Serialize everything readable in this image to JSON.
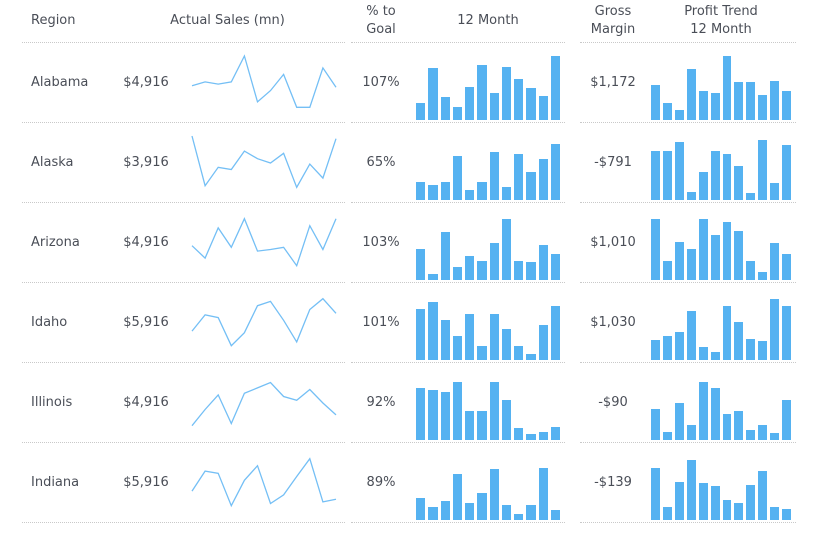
{
  "colors": {
    "bar": "#55b2f1",
    "line": "#74bff5",
    "text": "#4a4e57",
    "divider": "#c9c9c9",
    "background": "#ffffff"
  },
  "header": {
    "region": "Region",
    "actual_sales": "Actual Sales (mn)",
    "pct_to_goal": "% to Goal",
    "twelve_month": "12 Month",
    "gross_margin": "Gross Margin",
    "profit_trend": "Profit Trend 12 Month"
  },
  "chart_data": {
    "type": "table",
    "title": "Regional sales KPI table with sparklines and 12-month bar charts",
    "columns": [
      "Region",
      "Actual Sales (mn)",
      "Sales Trend sparkline (12 points)",
      "% to Goal",
      "12 Month bars",
      "Gross Margin",
      "Profit Trend 12 Month bars"
    ],
    "value_scale": "sparkline and bar values are relative heights 0-1 over 12 monthly periods",
    "legend": "none",
    "grid": "off",
    "rows": [
      {
        "region": "Alabama",
        "actual_sales": "$4,916",
        "sales_trend": [
          0.45,
          0.52,
          0.48,
          0.52,
          1.0,
          0.15,
          0.36,
          0.66,
          0.05,
          0.05,
          0.78,
          0.42
        ],
        "pct_to_goal": "107%",
        "twelve_month": [
          0.27,
          0.82,
          0.36,
          0.21,
          0.52,
          0.86,
          0.42,
          0.83,
          0.64,
          0.5,
          0.38,
          1.0
        ],
        "gross_margin": "$1,172",
        "profit_trend": [
          0.55,
          0.27,
          0.15,
          0.8,
          0.45,
          0.42,
          1.0,
          0.59,
          0.59,
          0.39,
          0.61,
          0.46
        ]
      },
      {
        "region": "Alaska",
        "actual_sales": "$3,916",
        "sales_trend": [
          1.0,
          0.08,
          0.42,
          0.38,
          0.72,
          0.58,
          0.5,
          0.68,
          0.05,
          0.48,
          0.22,
          0.95
        ],
        "pct_to_goal": "65%",
        "twelve_month": [
          0.28,
          0.24,
          0.28,
          0.68,
          0.16,
          0.28,
          0.75,
          0.2,
          0.72,
          0.44,
          0.64,
          0.88
        ],
        "gross_margin": "-$791",
        "profit_trend": [
          0.76,
          0.76,
          0.9,
          0.12,
          0.44,
          0.76,
          0.72,
          0.53,
          0.11,
          0.93,
          0.26,
          0.86
        ]
      },
      {
        "region": "Arizona",
        "actual_sales": "$4,916",
        "sales_trend": [
          0.45,
          0.22,
          0.78,
          0.42,
          0.95,
          0.35,
          0.38,
          0.42,
          0.08,
          0.82,
          0.38,
          0.95
        ],
        "pct_to_goal": "103%",
        "twelve_month": [
          0.48,
          0.1,
          0.75,
          0.2,
          0.38,
          0.3,
          0.58,
          0.95,
          0.3,
          0.28,
          0.55,
          0.4
        ],
        "gross_margin": "$1,010",
        "profit_trend": [
          0.95,
          0.3,
          0.6,
          0.48,
          0.95,
          0.7,
          0.9,
          0.77,
          0.3,
          0.13,
          0.58,
          0.4
        ]
      },
      {
        "region": "Idaho",
        "actual_sales": "$5,916",
        "sales_trend": [
          0.35,
          0.65,
          0.6,
          0.08,
          0.32,
          0.82,
          0.9,
          0.55,
          0.15,
          0.75,
          0.95,
          0.68
        ],
        "pct_to_goal": "101%",
        "twelve_month": [
          0.8,
          0.9,
          0.62,
          0.38,
          0.72,
          0.22,
          0.72,
          0.48,
          0.22,
          0.1,
          0.55,
          0.85
        ],
        "gross_margin": "$1,030",
        "profit_trend": [
          0.32,
          0.38,
          0.44,
          0.76,
          0.2,
          0.13,
          0.85,
          0.6,
          0.33,
          0.3,
          0.95,
          0.85
        ]
      },
      {
        "region": "Illinois",
        "actual_sales": "$4,916",
        "sales_trend": [
          0.08,
          0.38,
          0.65,
          0.12,
          0.68,
          0.78,
          0.88,
          0.62,
          0.55,
          0.75,
          0.5,
          0.28
        ],
        "pct_to_goal": "92%",
        "twelve_month": [
          0.82,
          0.78,
          0.75,
          0.9,
          0.45,
          0.45,
          0.9,
          0.62,
          0.18,
          0.1,
          0.13,
          0.21
        ],
        "gross_margin": "-$90",
        "profit_trend": [
          0.48,
          0.13,
          0.58,
          0.24,
          0.9,
          0.82,
          0.4,
          0.45,
          0.16,
          0.24,
          0.11,
          0.62
        ]
      },
      {
        "region": "Indiana",
        "actual_sales": "$5,916",
        "sales_trend": [
          0.35,
          0.72,
          0.68,
          0.08,
          0.55,
          0.82,
          0.12,
          0.28,
          0.62,
          0.95,
          0.15,
          0.2
        ],
        "pct_to_goal": "89%",
        "twelve_month": [
          0.34,
          0.2,
          0.29,
          0.72,
          0.27,
          0.42,
          0.79,
          0.23,
          0.1,
          0.23,
          0.82,
          0.16
        ],
        "gross_margin": "-$139",
        "profit_trend": [
          0.82,
          0.21,
          0.6,
          0.93,
          0.58,
          0.53,
          0.32,
          0.27,
          0.55,
          0.76,
          0.21,
          0.17
        ]
      }
    ]
  }
}
